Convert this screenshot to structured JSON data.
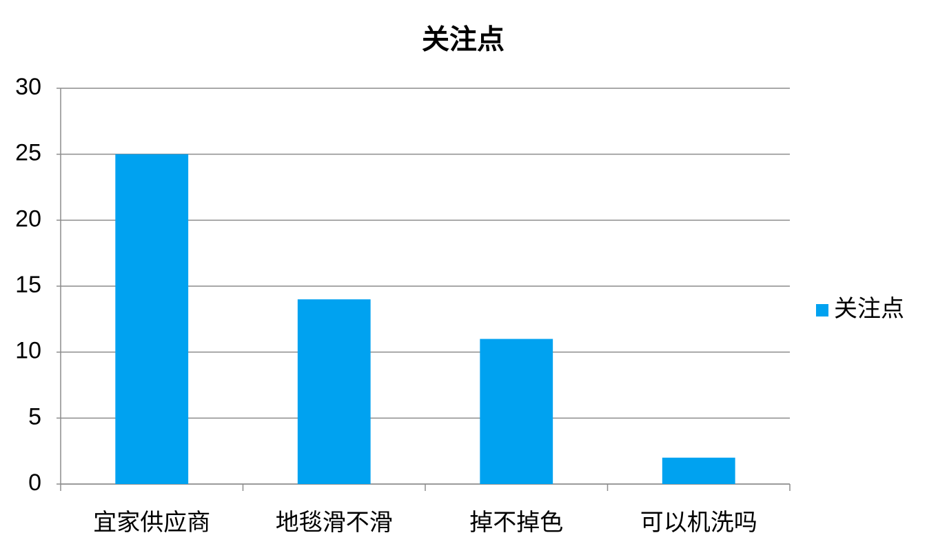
{
  "chart_data": {
    "type": "bar",
    "title": "关注点",
    "categories": [
      "宜家供应商",
      "地毯滑不滑",
      "掉不掉色",
      "可以机洗吗"
    ],
    "series": [
      {
        "name": "关注点",
        "color": "#00a2f0",
        "values": [
          25,
          14,
          11,
          2
        ]
      }
    ],
    "ylim": [
      0,
      30
    ],
    "yticks": [
      0,
      5,
      10,
      15,
      20,
      25,
      30
    ],
    "grid": true,
    "legend": "right"
  }
}
